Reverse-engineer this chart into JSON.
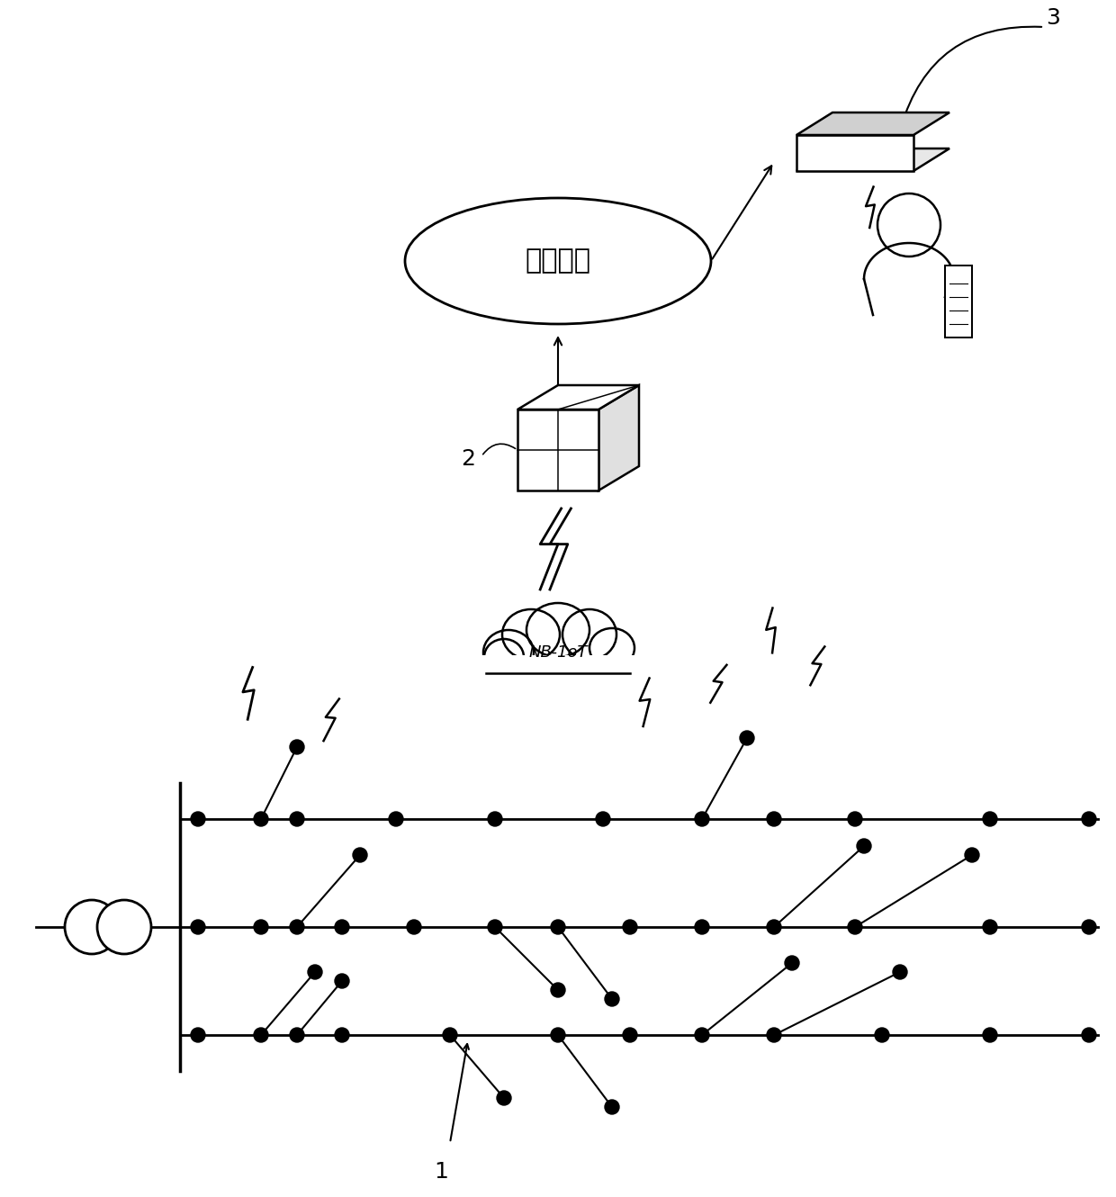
{
  "bg_color": "#ffffff",
  "line_color": "#000000",
  "monitoring_center_text": "监测中心",
  "nbi_label": "NB-1oT",
  "label_1": "1",
  "label_2": "2",
  "label_3": "3",
  "figw": 12.4,
  "figh": 13.3,
  "dpi": 100
}
